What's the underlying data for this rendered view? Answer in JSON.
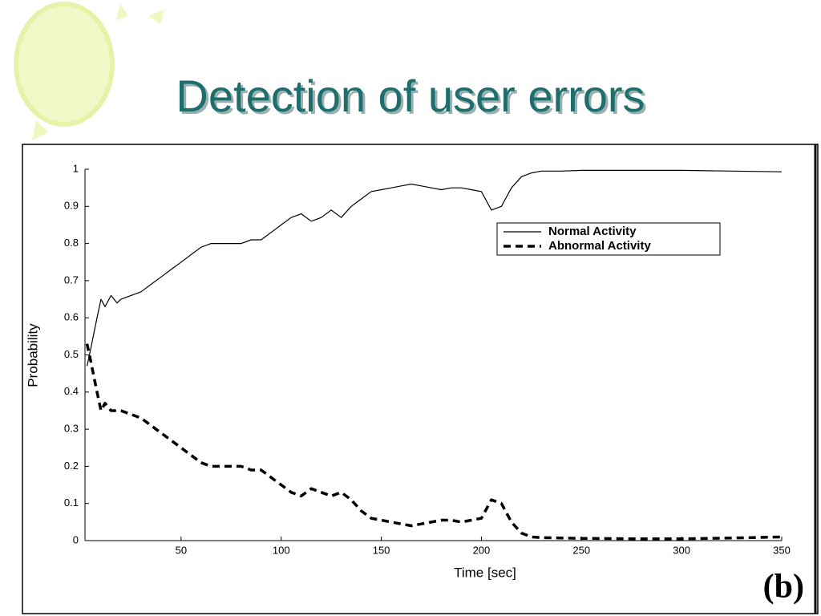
{
  "title": "Detection of user errors",
  "chart_data": {
    "type": "line",
    "x_label": "Time [sec]",
    "y_label": "Probability",
    "annotation": "(b)",
    "x": [
      3,
      5,
      8,
      10,
      12,
      15,
      18,
      20,
      25,
      30,
      35,
      40,
      45,
      50,
      55,
      60,
      65,
      70,
      75,
      80,
      85,
      90,
      95,
      100,
      105,
      110,
      115,
      120,
      125,
      130,
      135,
      140,
      145,
      150,
      155,
      160,
      165,
      170,
      175,
      180,
      185,
      190,
      195,
      200,
      205,
      210,
      215,
      220,
      225,
      230,
      240,
      250,
      275,
      300,
      325,
      350
    ],
    "series": [
      {
        "name": "Normal Activity",
        "color": "#000000",
        "style": "solid",
        "values": [
          0.47,
          0.52,
          0.6,
          0.65,
          0.63,
          0.66,
          0.64,
          0.65,
          0.66,
          0.67,
          0.69,
          0.71,
          0.73,
          0.75,
          0.77,
          0.79,
          0.8,
          0.8,
          0.8,
          0.8,
          0.81,
          0.81,
          0.83,
          0.85,
          0.87,
          0.88,
          0.86,
          0.87,
          0.89,
          0.87,
          0.9,
          0.92,
          0.94,
          0.945,
          0.95,
          0.955,
          0.96,
          0.955,
          0.95,
          0.945,
          0.95,
          0.95,
          0.945,
          0.94,
          0.89,
          0.9,
          0.95,
          0.98,
          0.99,
          0.995,
          0.995,
          0.997,
          0.997,
          0.997,
          0.995,
          0.993
        ]
      },
      {
        "name": "Abnormal Activity",
        "color": "#000000",
        "style": "dashed",
        "values": [
          0.53,
          0.48,
          0.4,
          0.35,
          0.37,
          0.35,
          0.35,
          0.35,
          0.34,
          0.33,
          0.31,
          0.29,
          0.27,
          0.25,
          0.23,
          0.21,
          0.2,
          0.2,
          0.2,
          0.2,
          0.19,
          0.19,
          0.17,
          0.15,
          0.13,
          0.12,
          0.14,
          0.13,
          0.12,
          0.13,
          0.11,
          0.08,
          0.06,
          0.055,
          0.05,
          0.045,
          0.04,
          0.045,
          0.05,
          0.055,
          0.055,
          0.05,
          0.055,
          0.06,
          0.11,
          0.1,
          0.05,
          0.02,
          0.01,
          0.008,
          0.007,
          0.006,
          0.005,
          0.005,
          0.007,
          0.01
        ]
      }
    ],
    "xlim": [
      2,
      350
    ],
    "xticks": [
      50,
      100,
      150,
      200,
      250,
      300,
      350
    ],
    "ylim": [
      0,
      1
    ],
    "yticks": [
      0,
      0.1,
      0.2,
      0.3,
      0.4,
      0.5,
      0.6,
      0.7,
      0.8,
      0.9,
      1
    ],
    "legend": "upper right",
    "grid": false
  }
}
